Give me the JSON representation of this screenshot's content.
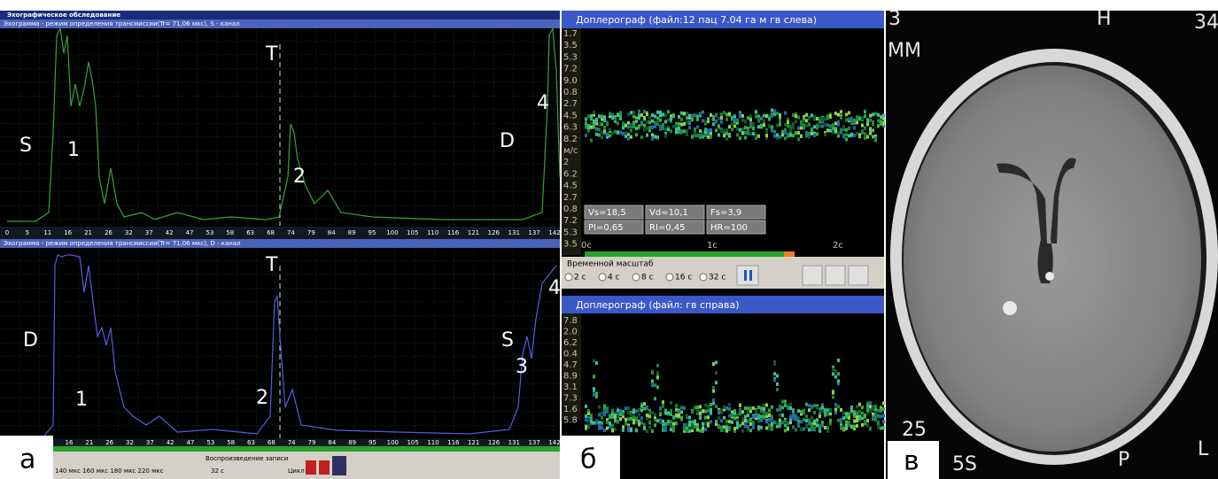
{
  "panel_a": {
    "label": "а",
    "window_title": "Эхографическое обследование",
    "top": {
      "caption": "Эхограмма - режим определения трансмиссии(Tr= 71,06 мкс), S - канал",
      "axis_labels": [
        "0",
        "5",
        "11",
        "16",
        "21",
        "26",
        "32",
        "37",
        "42",
        "47",
        "53",
        "58",
        "63",
        "68",
        "74",
        "79",
        "84",
        "89",
        "95",
        "100",
        "105",
        "110",
        "116",
        "121",
        "126",
        "131",
        "137",
        "142"
      ],
      "markers": {
        "left": "S",
        "peak1": "1",
        "t": "T",
        "peak2": "2",
        "right": "D",
        "peak4": "4"
      }
    },
    "bottom": {
      "caption": "Эхограмма - режим определения трансмиссии(Tr= 71,06 мкс), D - канал",
      "axis_labels": [
        "16",
        "21",
        "26",
        "32",
        "37",
        "42",
        "47",
        "53",
        "58",
        "63",
        "68",
        "74",
        "79",
        "84",
        "89",
        "95",
        "100",
        "105",
        "110",
        "116",
        "121",
        "126",
        "131",
        "137",
        "142"
      ],
      "markers": {
        "left": "D",
        "peak1": "1",
        "t": "T",
        "peak2": "2",
        "right": "S",
        "peak3": "3",
        "peak4": "4"
      }
    },
    "toolbar": {
      "pulse_options": "140 мкс  160 мкс  180 мкс  220 мкс",
      "playback": "Воспроизведение записи",
      "duration": "32 с",
      "loop": "Цикл"
    }
  },
  "panel_b": {
    "label": "б",
    "left_title": "Доплерограф (файл:12 пац 7.04 га м гв слева)",
    "right_title": "Доплерограф (файл: гв справа)",
    "top_scale": [
      "1.7",
      "3.5",
      "5.3",
      "7.2",
      "9.0",
      "0.8",
      "2.7",
      "4.5",
      "6.3",
      "8.2",
      "м/с",
      "2",
      "6.2",
      "4.5",
      "2.7",
      "0.8",
      "7.2",
      "5.3",
      "3.5"
    ],
    "bottom_scale": [
      "7.8",
      "2.0",
      "6.2",
      "0.4",
      "4.7",
      "8.9",
      "3.1",
      "7.3",
      "1.6",
      "5.8"
    ],
    "indices": [
      [
        "Vs=18,5",
        "Vd=10,1",
        "Fs=3,9"
      ],
      [
        "PI=0,65",
        "RI=0,45",
        "HR=100"
      ]
    ],
    "time_marks": [
      "0c",
      "1c",
      "2c"
    ],
    "time_scale_label": "Временной масштаб",
    "time_options": [
      "2 с",
      "4 с",
      "8 с",
      "16 с",
      "32 с"
    ]
  },
  "panel_c": {
    "label": "в",
    "corner_tl": "3",
    "top_center": "H",
    "corner_tr": "34",
    "unit": "MM",
    "bottom_left_num": "25",
    "bottom_left": "5S",
    "bottom_center": "P",
    "right": "L"
  }
}
